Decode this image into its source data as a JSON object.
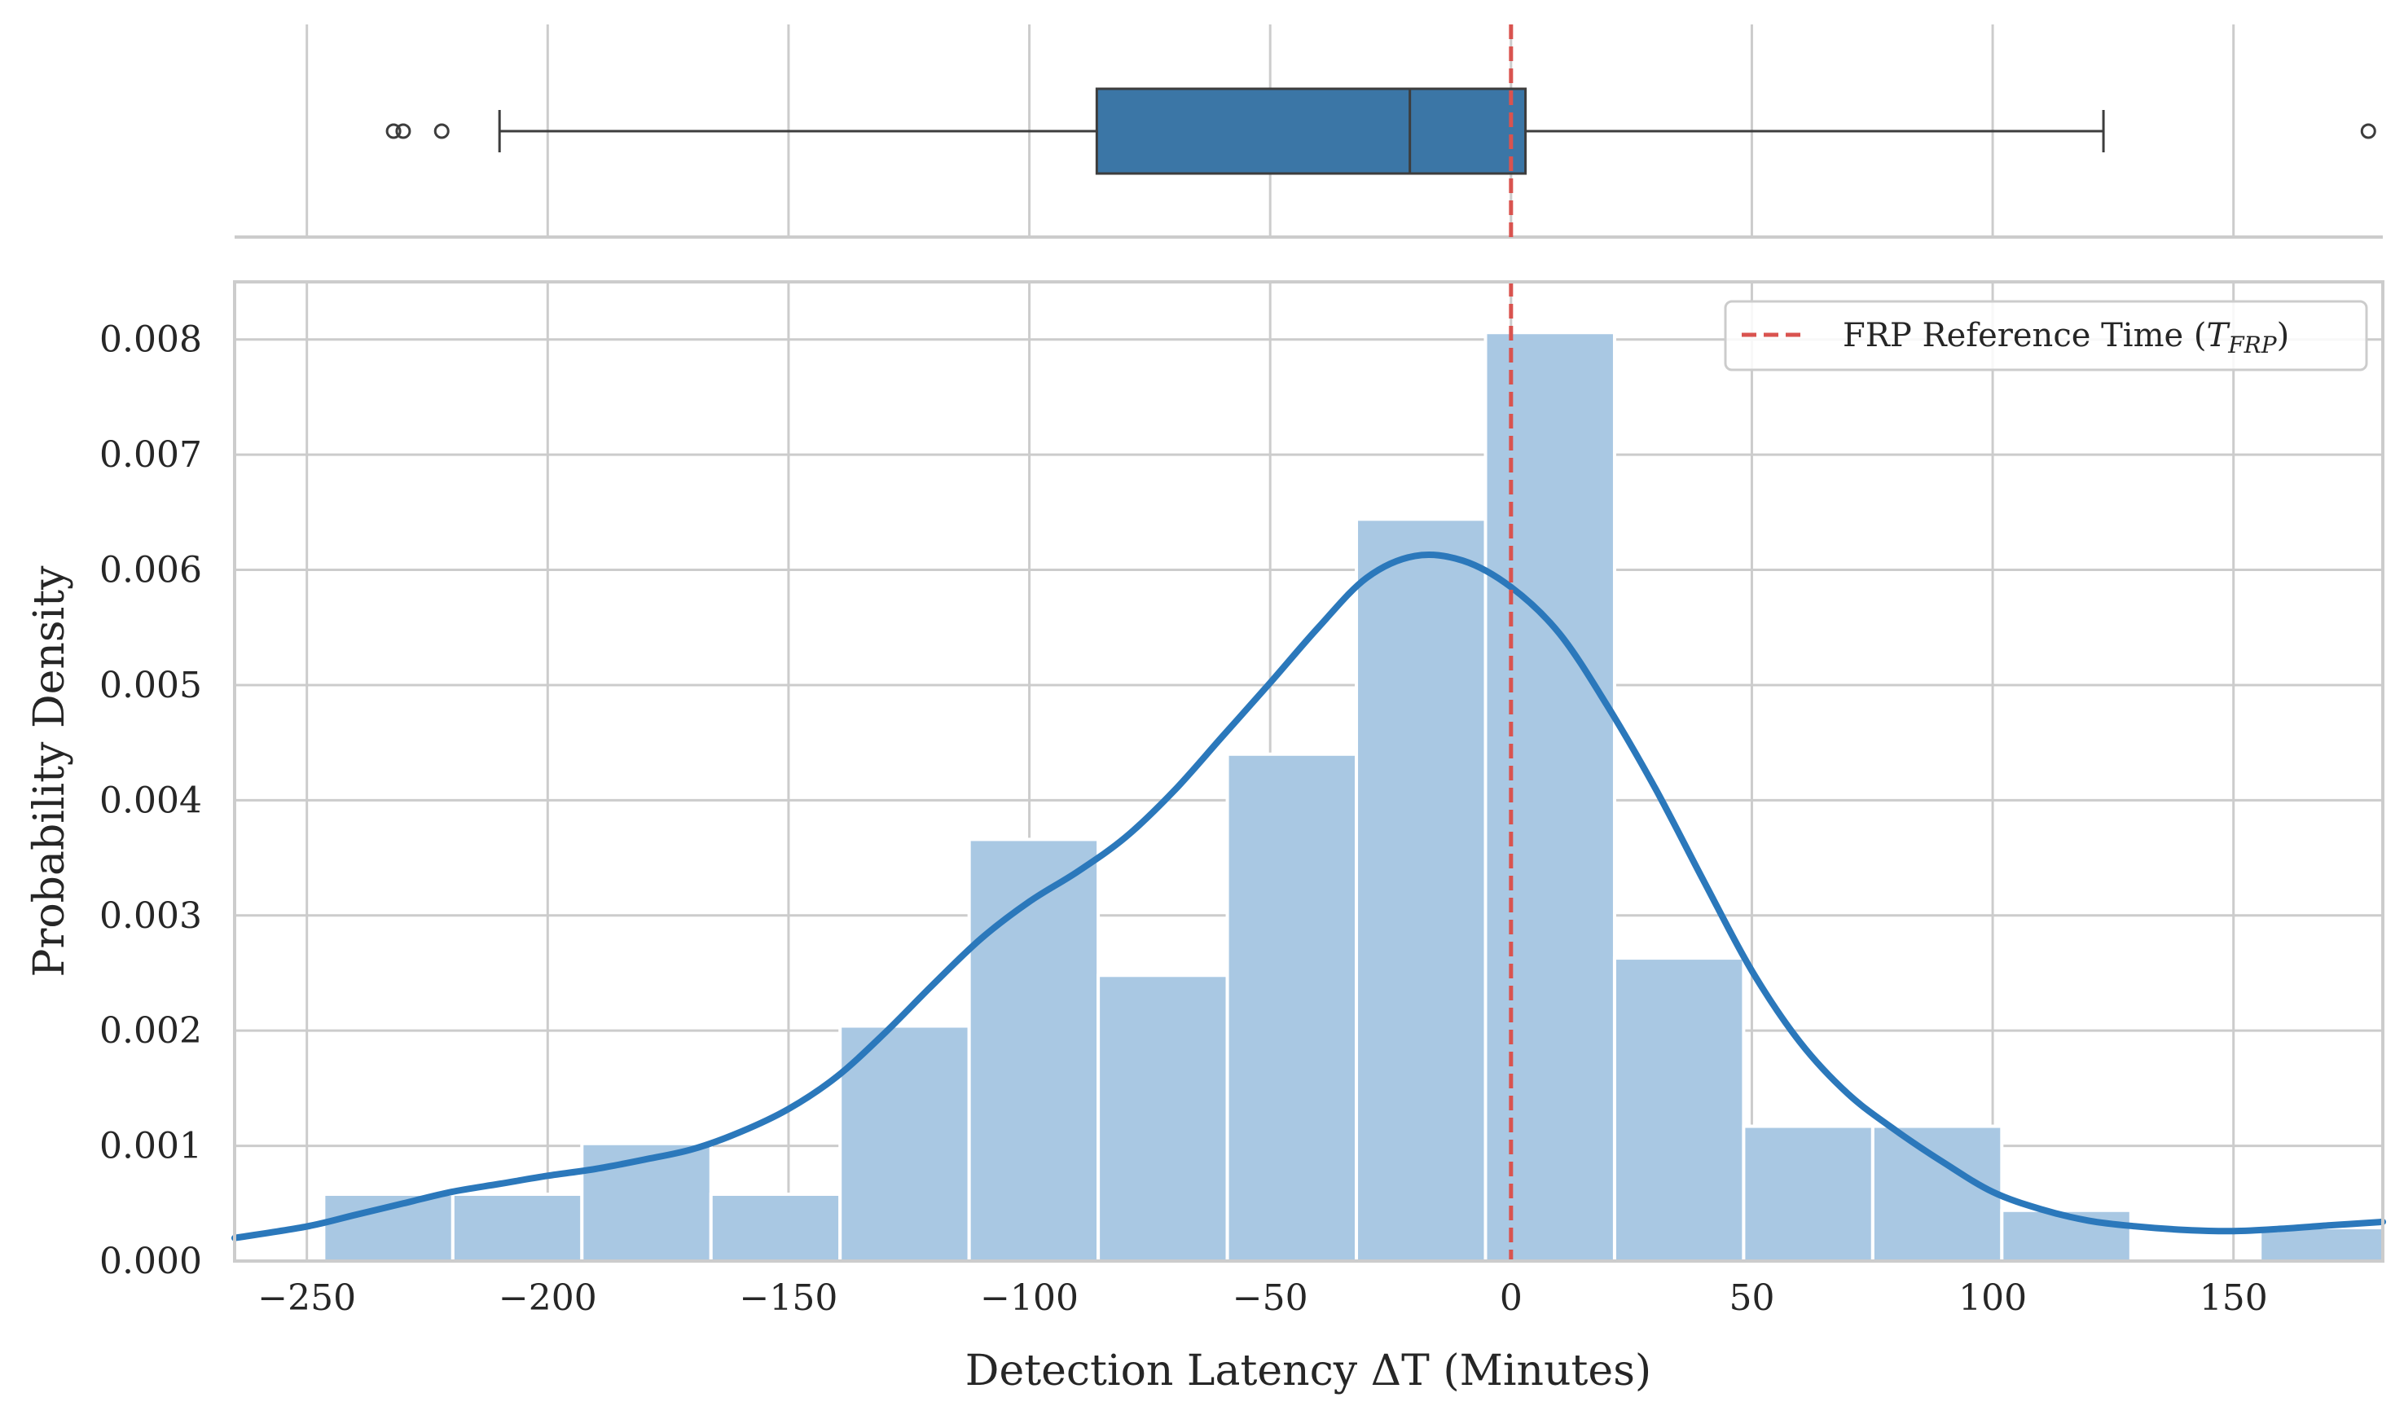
{
  "chart_data": {
    "type": "histogram+kde+boxplot",
    "xlabel": "Detection Latency ΔT (Minutes)",
    "ylabel": "Probability Density",
    "xlim": [
      -265,
      181
    ],
    "ylim": [
      0,
      0.0085
    ],
    "x_ticks": [
      -250,
      -200,
      -150,
      -100,
      -50,
      0,
      50,
      100,
      150
    ],
    "x_tick_labels": [
      "−250",
      "−200",
      "−150",
      "−100",
      "−50",
      "0",
      "50",
      "100",
      "150"
    ],
    "y_ticks": [
      0,
      0.001,
      0.002,
      0.003,
      0.004,
      0.005,
      0.006,
      0.007,
      0.008
    ],
    "y_tick_labels": [
      "0.000",
      "0.001",
      "0.002",
      "0.003",
      "0.004",
      "0.005",
      "0.006",
      "0.007",
      "0.008"
    ],
    "grid": true,
    "legend_position": "top-right",
    "histogram": {
      "bin_width": 26.8,
      "bins": [
        {
          "start": -246.5,
          "density": 0.00058
        },
        {
          "start": -219.7,
          "density": 0.00058
        },
        {
          "start": -192.9,
          "density": 0.00102
        },
        {
          "start": -166.1,
          "density": 0.00058
        },
        {
          "start": -139.3,
          "density": 0.00204
        },
        {
          "start": -112.5,
          "density": 0.00366
        },
        {
          "start": -85.7,
          "density": 0.00248
        },
        {
          "start": -58.9,
          "density": 0.0044
        },
        {
          "start": -32.1,
          "density": 0.00644
        },
        {
          "start": -5.3,
          "density": 0.00806
        },
        {
          "start": 21.5,
          "density": 0.00263
        },
        {
          "start": 48.3,
          "density": 0.00117
        },
        {
          "start": 75.1,
          "density": 0.00117
        },
        {
          "start": 101.9,
          "density": 0.00044
        },
        {
          "start": 128.7,
          "density": 0.0
        },
        {
          "start": 155.5,
          "density": 0.00029
        }
      ],
      "color": "#a9c8e3"
    },
    "kde": {
      "color": "#2b78bb",
      "x": [
        -265,
        -250,
        -240,
        -230,
        -220,
        -210,
        -200,
        -190,
        -180,
        -170,
        -160,
        -150,
        -140,
        -130,
        -120,
        -110,
        -100,
        -90,
        -80,
        -70,
        -60,
        -50,
        -40,
        -30,
        -20,
        -10,
        0,
        10,
        20,
        30,
        40,
        50,
        60,
        70,
        80,
        90,
        100,
        110,
        120,
        130,
        140,
        150,
        160,
        170,
        181
      ],
      "y": [
        0.0002,
        0.0003,
        0.0004,
        0.0005,
        0.0006,
        0.00067,
        0.00074,
        0.0008,
        0.00088,
        0.00097,
        0.00112,
        0.00132,
        0.0016,
        0.00198,
        0.0024,
        0.0028,
        0.00312,
        0.00338,
        0.00368,
        0.00408,
        0.00455,
        0.00502,
        0.0055,
        0.00593,
        0.00612,
        0.00608,
        0.00585,
        0.00545,
        0.00482,
        0.0041,
        0.0033,
        0.00252,
        0.0019,
        0.00145,
        0.00113,
        0.00085,
        0.0006,
        0.00045,
        0.00035,
        0.0003,
        0.00027,
        0.00026,
        0.00028,
        0.00031,
        0.00034
      ]
    },
    "reference_line": {
      "x": 0,
      "label": "FRP Reference Time (",
      "label_math": "T",
      "label_sub": "FRP",
      "label_close": ")",
      "color": "#d9534f"
    },
    "boxplot": {
      "q1": -86,
      "median": -21,
      "q3": 3,
      "whisker_low": -210,
      "whisker_high": 123,
      "outliers": [
        -232,
        -230,
        -222,
        178
      ],
      "color": "#3b76a6"
    }
  }
}
